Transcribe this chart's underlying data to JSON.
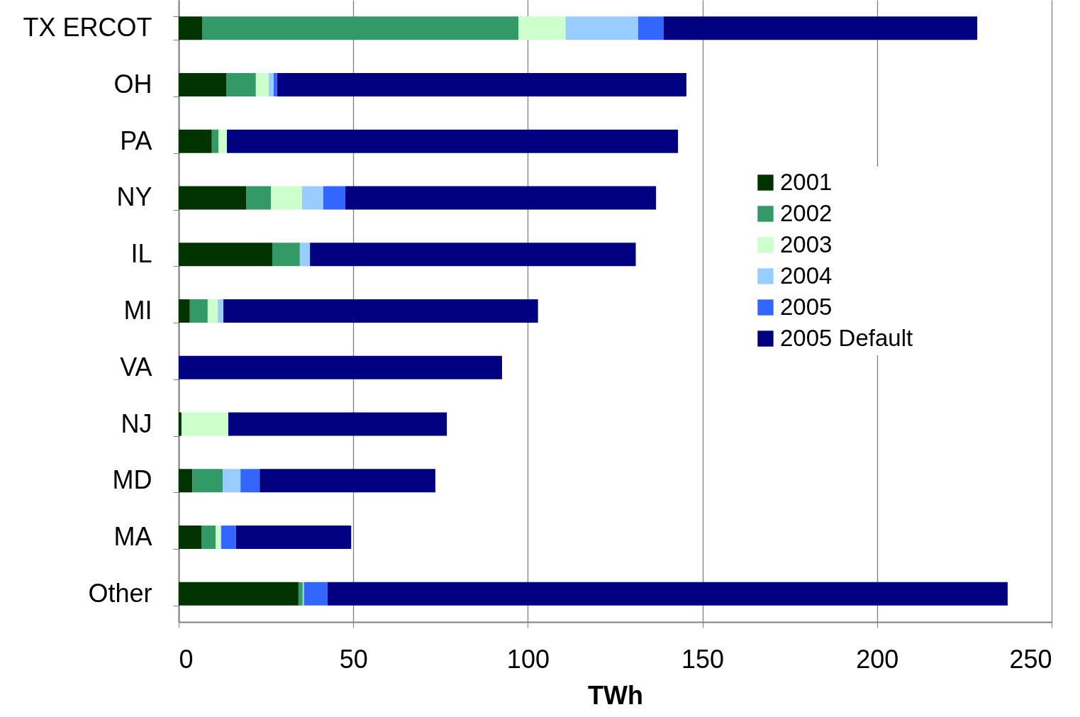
{
  "chart_data": {
    "type": "bar",
    "orientation": "horizontal",
    "stacked": true,
    "xlabel": "TWh",
    "categories": [
      "TX ERCOT",
      "OH",
      "PA",
      "NY",
      "IL",
      "MI",
      "VA",
      "NJ",
      "MD",
      "MA",
      "Other"
    ],
    "series": [
      {
        "name": "2001",
        "color": "#003300",
        "values": [
          6.7,
          13.6,
          9.5,
          19.3,
          26.8,
          3.2,
          0,
          0.8,
          3.9,
          6.5,
          34.3
        ]
      },
      {
        "name": "2002",
        "color": "#339966",
        "values": [
          90.6,
          8.5,
          1.9,
          7.1,
          7.9,
          5.1,
          0,
          0,
          8.7,
          4.1,
          1.2
        ]
      },
      {
        "name": "2003",
        "color": "#ccffcc",
        "values": [
          13.5,
          3.7,
          2.4,
          8.9,
          0,
          2.9,
          0,
          13.4,
          0,
          1.4,
          0
        ]
      },
      {
        "name": "2004",
        "color": "#99ccff",
        "values": [
          20.8,
          1.4,
          0,
          6.1,
          2.9,
          1.6,
          0,
          0,
          5.1,
          0.2,
          0.4
        ]
      },
      {
        "name": "2005",
        "color": "#3366ff",
        "values": [
          7.3,
          1.0,
          0,
          6.3,
          0,
          0,
          0,
          0,
          5.5,
          4.2,
          6.7
        ]
      },
      {
        "name": "2005 Default",
        "color": "#000080",
        "values": [
          89.8,
          117.2,
          129.2,
          89.0,
          93.3,
          90.1,
          92.6,
          62.6,
          50.3,
          33.0,
          194.8
        ]
      }
    ],
    "xlim": [
      0,
      250
    ],
    "xticks": [
      0,
      50,
      100,
      150,
      200,
      250
    ],
    "grid": "x",
    "legend": "right"
  }
}
